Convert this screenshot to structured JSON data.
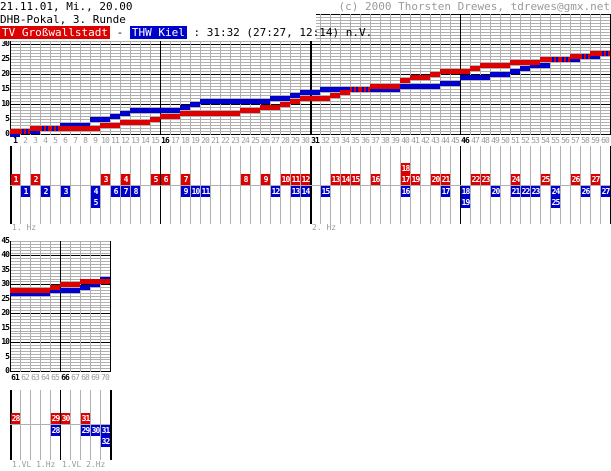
{
  "header": {
    "datetime": "21.11.01, Mi., 20.00",
    "competition": "DHB-Pokal, 3. Runde",
    "home_team": "TV Großwallstadt",
    "separator": " - ",
    "away_team": "THW Kiel",
    "score_text": " : 31:32 (27:27, 12:14) n.V.",
    "copyright": "(c) 2000 Thorsten Drewes, tdrewes@gmx.net"
  },
  "colors": {
    "home": "#dd0000",
    "away": "#0000cc",
    "axis": "#000000",
    "grid": "#b0b0b0",
    "muted": "#9a9a9a"
  },
  "chart_data": [
    {
      "type": "step-line",
      "x_start": 1,
      "x_end": 60,
      "xlabel_every": 1,
      "bold_x_ticks": [
        1,
        16,
        31,
        46
      ],
      "half_start_x": 31,
      "y_ticks": [
        0,
        5,
        10,
        15,
        20,
        25,
        30
      ],
      "grid_y_max": 40,
      "series": [
        {
          "name": "TV Großwallstadt",
          "color": "#dd0000",
          "values": [
            1,
            1,
            2,
            2,
            2,
            2,
            2,
            2,
            2,
            3,
            3,
            4,
            4,
            4,
            5,
            6,
            6,
            7,
            7,
            7,
            7,
            7,
            7,
            8,
            8,
            9,
            9,
            10,
            11,
            12,
            12,
            12,
            13,
            14,
            15,
            15,
            16,
            16,
            16,
            18,
            19,
            19,
            20,
            21,
            21,
            21,
            22,
            23,
            23,
            23,
            24,
            24,
            24,
            25,
            25,
            25,
            26,
            26,
            27,
            27
          ]
        },
        {
          "name": "THW Kiel",
          "color": "#0000cc",
          "values": [
            0,
            1,
            1,
            2,
            2,
            3,
            3,
            3,
            5,
            5,
            6,
            7,
            8,
            8,
            8,
            8,
            8,
            9,
            10,
            11,
            11,
            11,
            11,
            11,
            11,
            11,
            12,
            12,
            13,
            14,
            14,
            15,
            15,
            15,
            15,
            15,
            15,
            15,
            15,
            16,
            16,
            16,
            16,
            17,
            17,
            19,
            19,
            19,
            20,
            20,
            21,
            22,
            23,
            23,
            25,
            25,
            25,
            26,
            26,
            27
          ]
        }
      ]
    },
    {
      "type": "step-line",
      "x_start": 61,
      "x_end": 70,
      "xlabel_every": 1,
      "bold_x_ticks": [
        61,
        66
      ],
      "half_start_x": null,
      "y_ticks": [
        0,
        5,
        10,
        15,
        20,
        25,
        30,
        35,
        40,
        45
      ],
      "grid_y_max": 45,
      "series": [
        {
          "name": "TV Großwallstadt",
          "color": "#dd0000",
          "values": [
            28,
            28,
            28,
            28,
            29,
            30,
            30,
            31,
            31,
            31
          ]
        },
        {
          "name": "THW Kiel",
          "color": "#0000cc",
          "values": [
            27,
            27,
            27,
            27,
            28,
            28,
            28,
            29,
            30,
            32
          ]
        }
      ]
    }
  ],
  "goal_timeline_1": {
    "x_start": 1,
    "x_end": 60,
    "labels": [
      {
        "text": "1. Hz",
        "at_minute": 1
      },
      {
        "text": "2. Hz",
        "at_minute": 31
      }
    ],
    "home_goals": [
      [
        1,
        1
      ],
      [
        3,
        2
      ],
      [
        10,
        3
      ],
      [
        12,
        4
      ],
      [
        15,
        5
      ],
      [
        16,
        6
      ],
      [
        18,
        7
      ],
      [
        24,
        8
      ],
      [
        26,
        9
      ],
      [
        28,
        10
      ],
      [
        29,
        11
      ],
      [
        30,
        12
      ],
      [
        33,
        13
      ],
      [
        34,
        14
      ],
      [
        35,
        15
      ],
      [
        37,
        16
      ],
      [
        40,
        17
      ],
      [
        40,
        18
      ],
      [
        41,
        19
      ],
      [
        43,
        20
      ],
      [
        44,
        21
      ],
      [
        47,
        22
      ],
      [
        48,
        23
      ],
      [
        51,
        24
      ],
      [
        54,
        25
      ],
      [
        57,
        26
      ],
      [
        59,
        27
      ]
    ],
    "away_goals": [
      [
        2,
        1
      ],
      [
        4,
        2
      ],
      [
        6,
        3
      ],
      [
        9,
        4
      ],
      [
        9,
        5
      ],
      [
        11,
        6
      ],
      [
        12,
        7
      ],
      [
        13,
        8
      ],
      [
        18,
        9
      ],
      [
        19,
        10
      ],
      [
        20,
        11
      ],
      [
        27,
        12
      ],
      [
        29,
        13
      ],
      [
        30,
        14
      ],
      [
        32,
        15
      ],
      [
        40,
        16
      ],
      [
        44,
        17
      ],
      [
        46,
        18
      ],
      [
        46,
        19
      ],
      [
        49,
        20
      ],
      [
        51,
        21
      ],
      [
        52,
        22
      ],
      [
        53,
        23
      ],
      [
        55,
        24
      ],
      [
        55,
        25
      ],
      [
        58,
        26
      ],
      [
        60,
        27
      ]
    ]
  },
  "goal_timeline_2": {
    "x_start": 61,
    "x_end": 70,
    "labels": [
      {
        "text": "1.VL 1.Hz",
        "at_minute": 61
      },
      {
        "text": "1.VL 2.Hz",
        "at_minute": 66
      }
    ],
    "home_goals": [
      [
        61,
        28
      ],
      [
        65,
        29
      ],
      [
        66,
        30
      ],
      [
        68,
        31
      ]
    ],
    "away_goals": [
      [
        65,
        28
      ],
      [
        68,
        29
      ],
      [
        69,
        30
      ],
      [
        70,
        31
      ],
      [
        70,
        32
      ]
    ]
  }
}
